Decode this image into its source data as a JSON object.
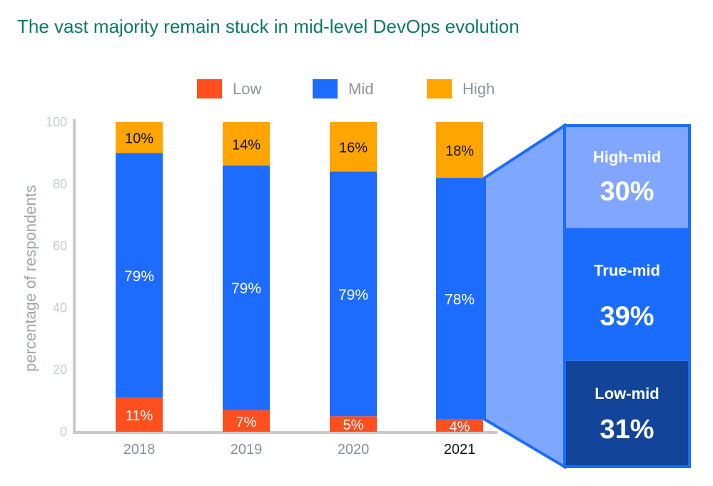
{
  "colors": {
    "title": "#0b7a64",
    "low": "#ff4f1f",
    "mid": "#1d6cff",
    "high": "#ffa500",
    "axis": "#c9c9c9",
    "tick": "#c7cbd3",
    "legend_text": "#8e949d",
    "ylabel": "#9ea4ad",
    "x_label": "#888f98",
    "x_label_active": "#111111",
    "breakdown_border": "#1a6cff",
    "breakdown_wedge": "#7ea7ff",
    "high_mid": "#80a6ff",
    "true_mid": "#1a6cff",
    "low_mid": "#12459a"
  },
  "chart_data": {
    "type": "bar",
    "stacked": true,
    "title": "The vast majority remain stuck in mid-level DevOps evolution",
    "categories": [
      "2018",
      "2019",
      "2020",
      "2021"
    ],
    "highlight_category": "2021",
    "series": [
      {
        "name": "Low",
        "values": [
          11,
          7,
          5,
          4
        ],
        "labels": [
          "11%",
          "7%",
          "5%",
          "4%"
        ]
      },
      {
        "name": "Mid",
        "values": [
          79,
          79,
          79,
          78
        ],
        "labels": [
          "79%",
          "79%",
          "79%",
          "78%"
        ]
      },
      {
        "name": "High",
        "values": [
          10,
          14,
          16,
          18
        ],
        "labels": [
          "10%",
          "14%",
          "16%",
          "18%"
        ]
      }
    ],
    "ylabel": "percentage of respondents",
    "xlabel": "",
    "ylim": [
      0,
      100
    ],
    "yticks": [
      0,
      20,
      40,
      60,
      80,
      100
    ],
    "grid": false,
    "legend": {
      "placement": "top-center",
      "entries": [
        "Low",
        "Mid",
        "High"
      ]
    },
    "mid_breakdown_2021": [
      {
        "name": "High-mid",
        "label": "30%",
        "value": 30
      },
      {
        "name": "True-mid",
        "label": "39%",
        "value": 39
      },
      {
        "name": "Low-mid",
        "label": "31%",
        "value": 31
      }
    ]
  }
}
